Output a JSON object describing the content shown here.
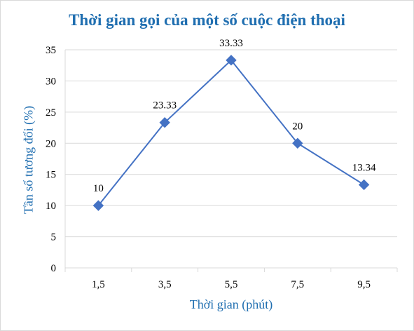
{
  "chart_data": {
    "type": "line",
    "title": "Thời gian gọi của một số cuộc điện thoại",
    "xlabel": "Thời gian (phút)",
    "ylabel": "Tần số tương đối (%)",
    "categories": [
      "1,5",
      "3,5",
      "5,5",
      "7,5",
      "9,5"
    ],
    "series": [
      {
        "values": [
          10,
          23.33,
          33.33,
          20,
          13.34
        ],
        "data_labels": [
          "10",
          "23.33",
          "33.33",
          "20",
          "13.34"
        ]
      }
    ],
    "ylim": [
      0,
      35
    ],
    "yticks": [
      0,
      5,
      10,
      15,
      20,
      25,
      30,
      35
    ],
    "grid": true,
    "legend": "none",
    "marker": "diamond",
    "colors": {
      "series": "#4472c4",
      "title": "#1f6eb0",
      "axis_title": "#1f6eb0",
      "tick_text": "#000000",
      "grid": "#d9d9d9"
    }
  }
}
